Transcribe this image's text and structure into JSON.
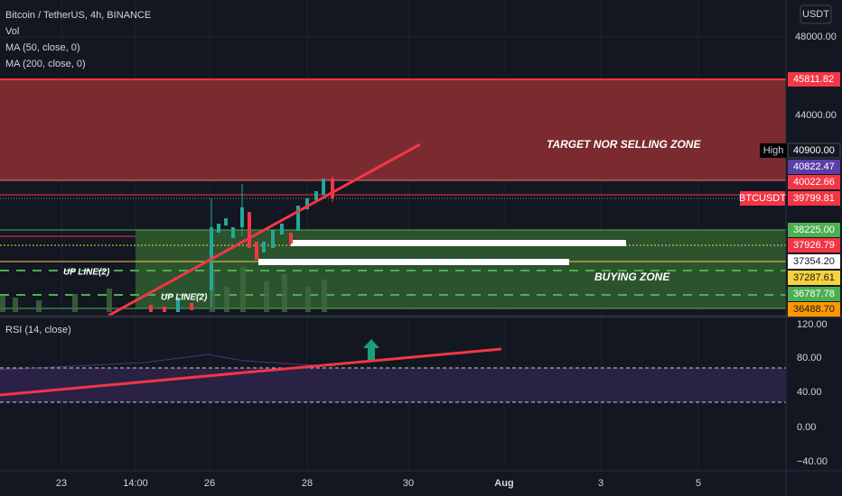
{
  "header": {
    "title": "Bitcoin / TetherUS, 4h, BINANCE",
    "indicators": [
      "Vol",
      "MA (50, close, 0)",
      "MA (200, close, 0)"
    ]
  },
  "currency": "USDT",
  "price_axis": [
    "48000.00",
    "44000.00"
  ],
  "price_labels": [
    {
      "text": "45811.82",
      "color": "#f23645"
    },
    {
      "text": "40900.00",
      "color": "#131722"
    },
    {
      "text": "40822.47",
      "color": "#5b3fa8"
    },
    {
      "text": "40022.66",
      "color": "#f23645"
    },
    {
      "text": "39799.81",
      "color": "#f23645"
    },
    {
      "text": "38225.00",
      "color": "#4caf50"
    },
    {
      "text": "37926.79",
      "color": "#f23645"
    },
    {
      "text": "37354.20",
      "color": "#ffffff"
    },
    {
      "text": "37287.61",
      "color": "#f7d23e"
    },
    {
      "text": "36787.78",
      "color": "#4caf50"
    },
    {
      "text": "36488.70",
      "color": "#ff9800"
    }
  ],
  "high_tag": "High",
  "symbol_tag": "BTCUSDT",
  "annotations": [
    "TARGET NOR SELLING ZONE",
    "BUYING ZONE",
    "UP LINE(2)",
    "UP LINE(2)"
  ],
  "rsi": {
    "title": "RSI (14, close)",
    "axis": [
      "120.00",
      "80.00",
      "40.00",
      "0.00",
      "−40.00"
    ]
  },
  "time_axis": [
    "23",
    "14:00",
    "26",
    "28",
    "30",
    "Aug",
    "3",
    "5"
  ]
}
